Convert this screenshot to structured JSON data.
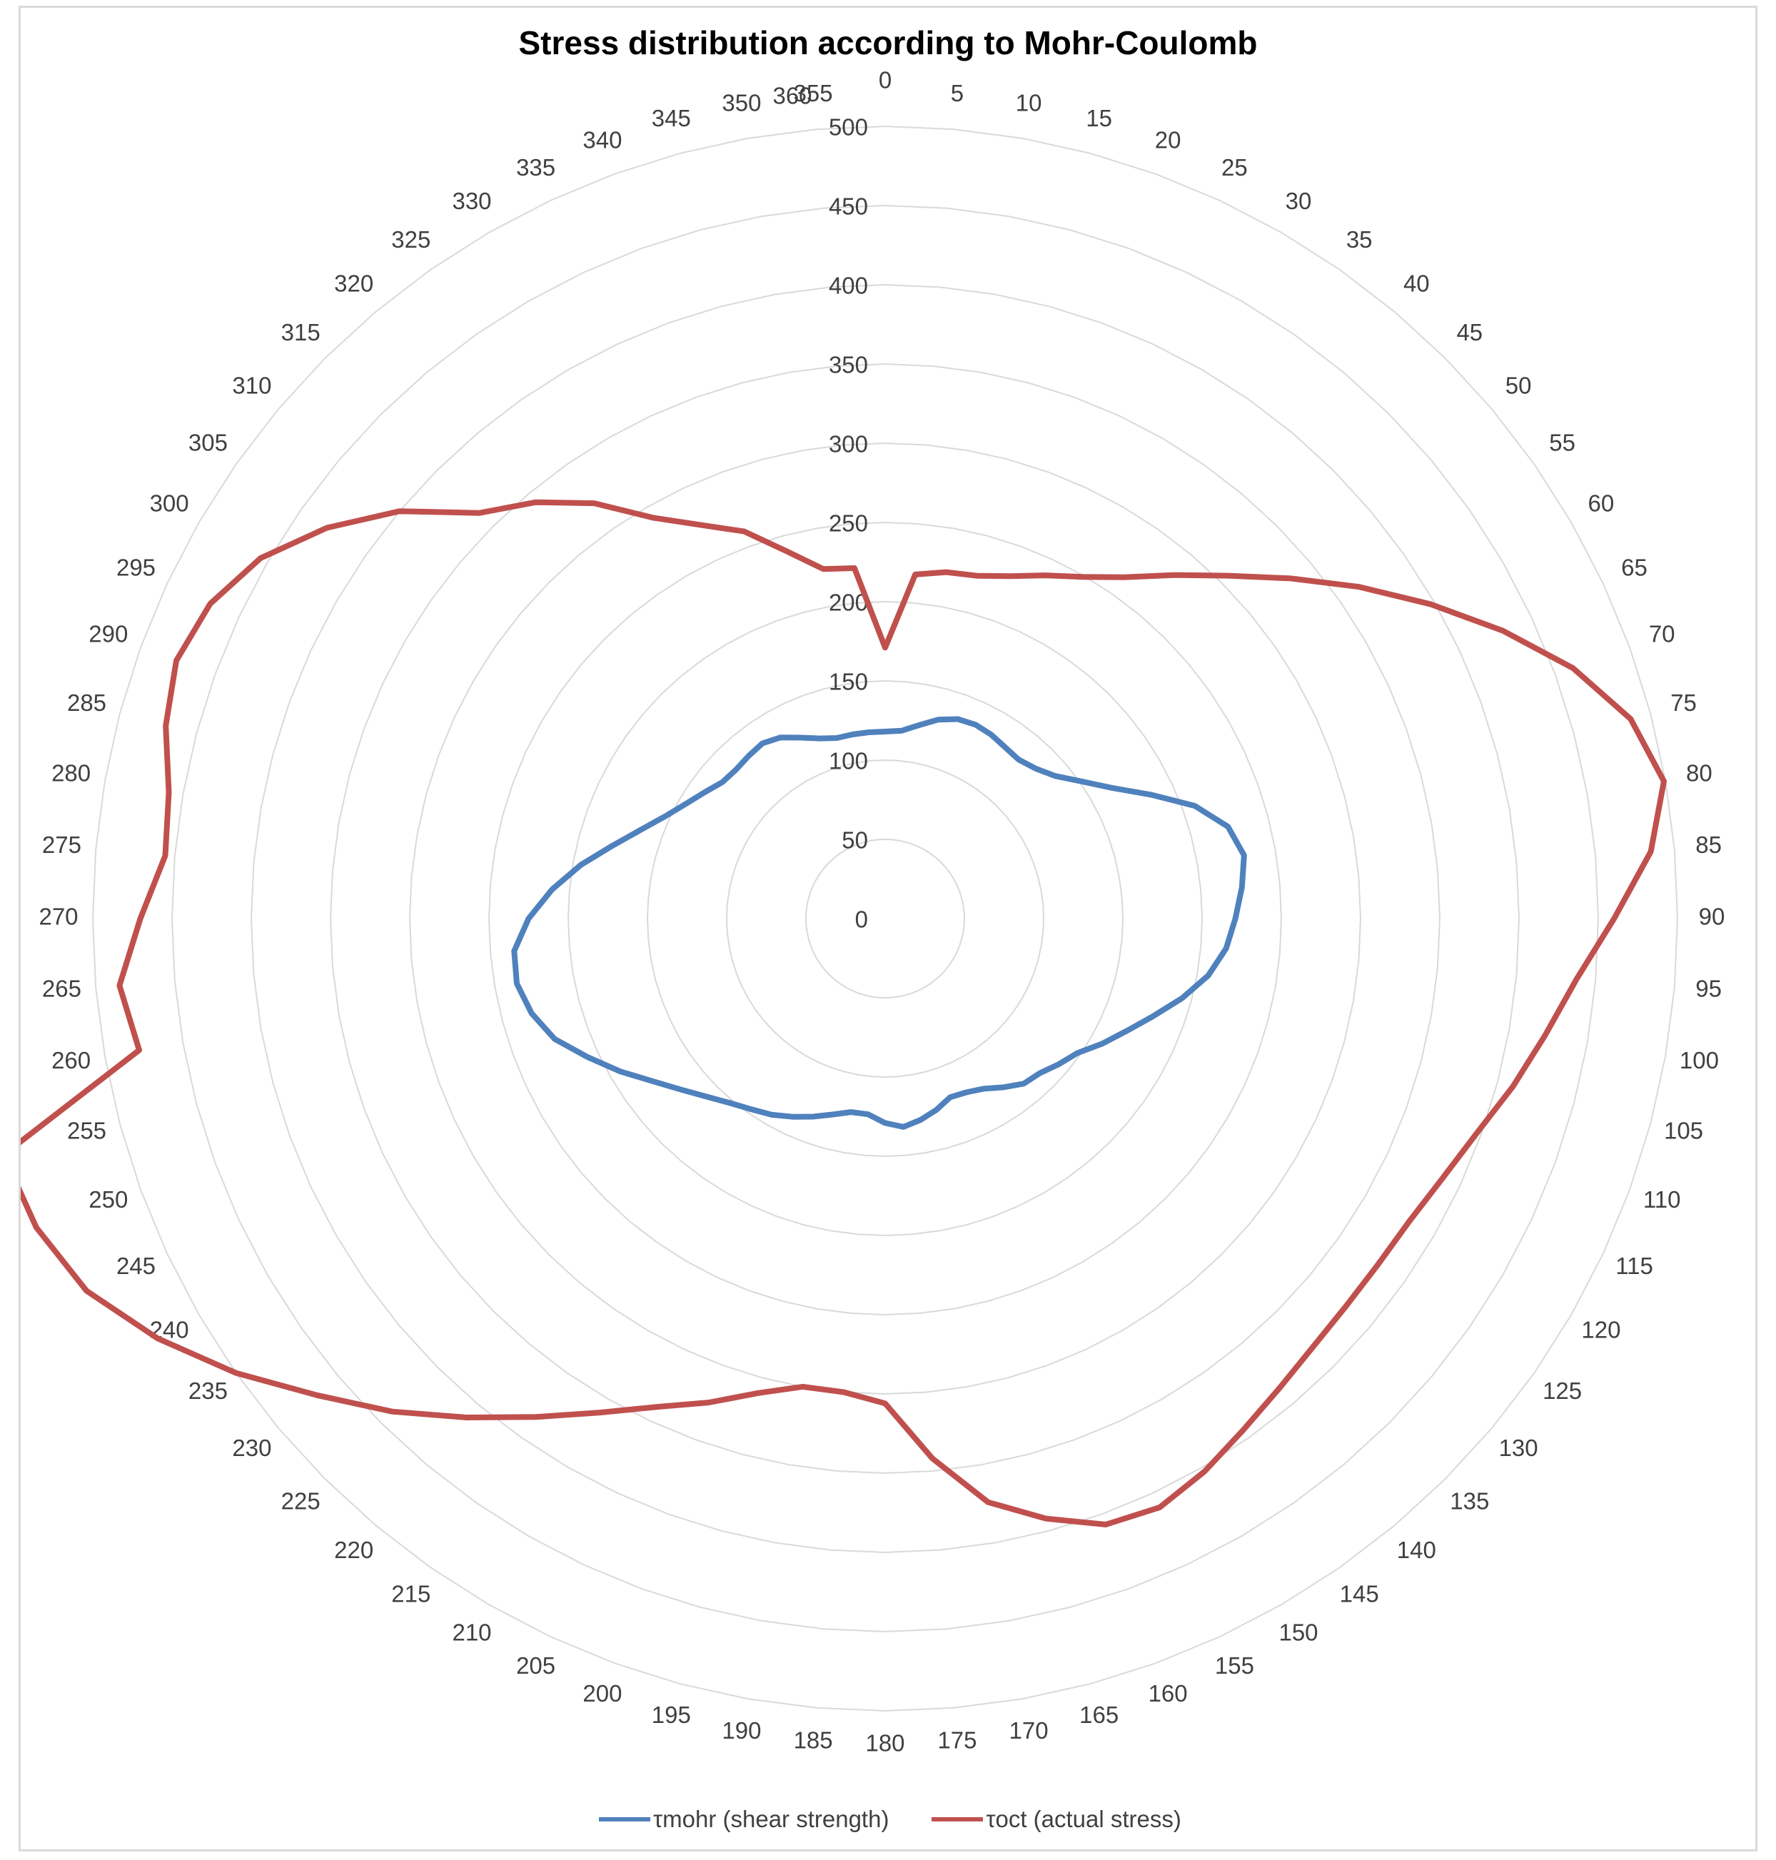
{
  "chart_data": {
    "type": "radar",
    "title": "Stress distribution according to Mohr-Coulomb",
    "angle_labels": [
      "0",
      "5",
      "10",
      "15",
      "20",
      "25",
      "30",
      "35",
      "40",
      "45",
      "50",
      "55",
      "60",
      "65",
      "70",
      "75",
      "80",
      "85",
      "90",
      "95",
      "100",
      "105",
      "110",
      "115",
      "120",
      "125",
      "130",
      "135",
      "140",
      "145",
      "150",
      "155",
      "160",
      "165",
      "170",
      "175",
      "180",
      "185",
      "190",
      "195",
      "200",
      "205",
      "210",
      "215",
      "220",
      "225",
      "230",
      "235",
      "240",
      "245",
      "250",
      "255",
      "260",
      "265",
      "270",
      "275",
      "280",
      "285",
      "290",
      "295",
      "300",
      "305",
      "310",
      "315",
      "320",
      "325",
      "330",
      "335",
      "340",
      "345",
      "350",
      "355",
      "360"
    ],
    "radial_ticks": [
      "0",
      "50",
      "100",
      "150",
      "200",
      "250",
      "300",
      "350",
      "400",
      "450",
      "500"
    ],
    "rmax": 500,
    "grid": true,
    "legend_position": "bottom",
    "series": [
      {
        "name": "τmohr (shear strength)",
        "color": "#4f81bd",
        "values": [
          118,
          119,
          124,
          130,
          134,
          135,
          134,
          132,
          131,
          134,
          140,
          151,
          165,
          185,
          208,
          224,
          230,
          226,
          221,
          216,
          207,
          194,
          180,
          168,
          158,
          148,
          143,
          138,
          136,
          130,
          124,
          121,
          120,
          125,
          129,
          132,
          129,
          124,
          124,
          128,
          133,
          138,
          143,
          147,
          152,
          159,
          168,
          179,
          193,
          207,
          222,
          231,
          236,
          235,
          225,
          211,
          195,
          178,
          164,
          153,
          145,
          139,
          134,
          133,
          134,
          135,
          132,
          126,
          121,
          118,
          118,
          118,
          118
        ]
      },
      {
        "name": "τoct (actual stress)",
        "color": "#c0504d",
        "values": [
          171,
          218,
          222,
          224,
          230,
          239,
          249,
          263,
          283,
          306,
          334,
          365,
          397,
          430,
          462,
          487,
          499,
          485,
          460,
          438,
          423,
          410,
          397,
          388,
          382,
          380,
          380,
          382,
          387,
          394,
          403,
          410,
          407,
          392,
          374,
          342,
          306,
          300,
          300,
          310,
          325,
          340,
          360,
          384,
          411,
          440,
          468,
          500,
          530,
          556,
          570,
          576,
          478,
          485,
          470,
          456,
          459,
          470,
          476,
          470,
          455,
          430,
          400,
          362,
          343,
          320,
          292,
          274,
          260,
          240,
          224,
          222,
          218
        ]
      }
    ]
  }
}
